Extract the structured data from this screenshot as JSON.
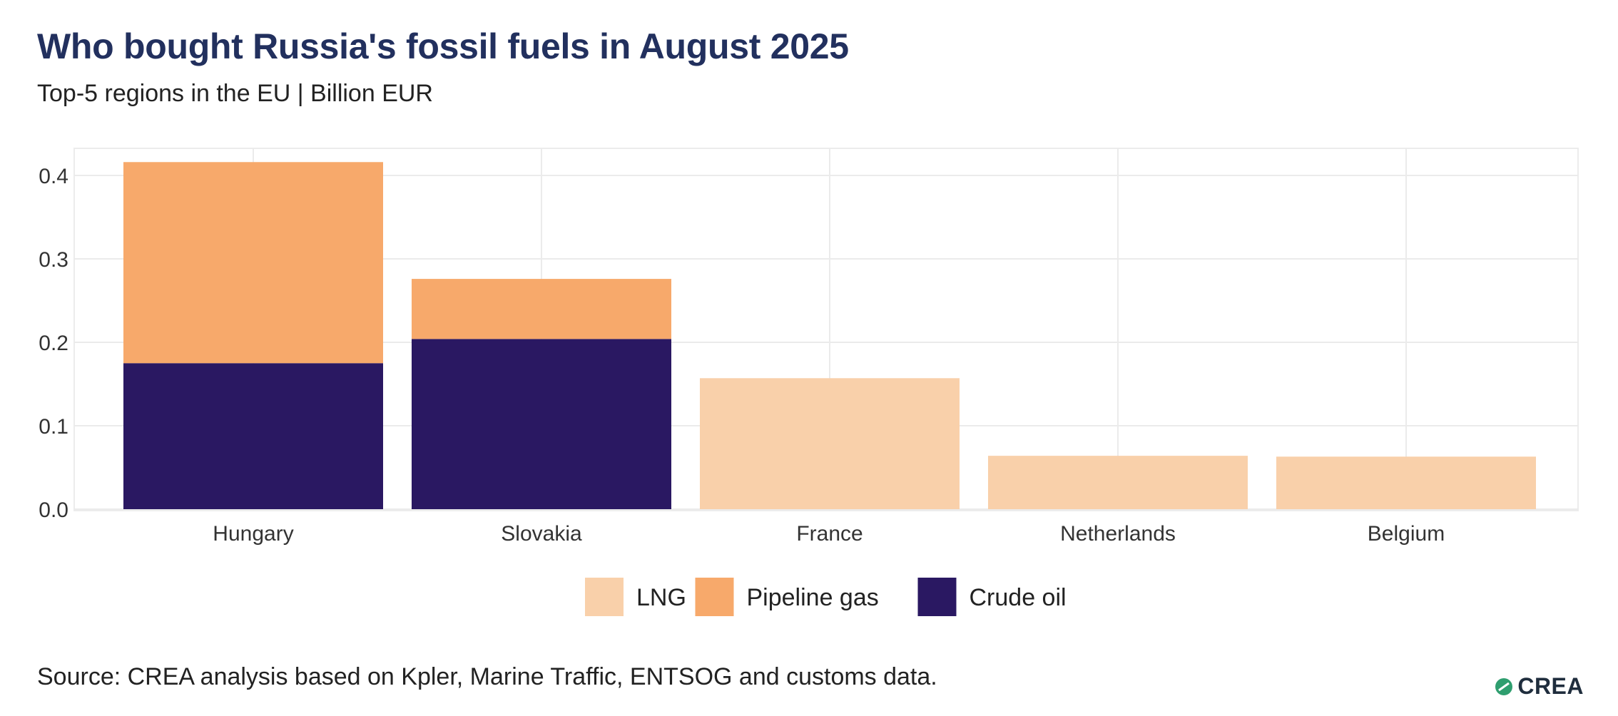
{
  "title": "Who bought Russia's fossil fuels in August 2025",
  "subtitle": "Top-5 regions in the EU | Billion EUR",
  "source": "Source: CREA analysis based on Kpler, Marine Traffic, ENTSOG and customs data.",
  "logo": {
    "text": "CREA"
  },
  "chart_data": {
    "type": "bar",
    "stacked": true,
    "categories": [
      "Hungary",
      "Slovakia",
      "France",
      "Netherlands",
      "Belgium"
    ],
    "series": [
      {
        "name": "Crude oil",
        "color": "#2a1862",
        "values": [
          0.175,
          0.204,
          0,
          0,
          0
        ]
      },
      {
        "name": "Pipeline gas",
        "color": "#f7a96b",
        "values": [
          0.241,
          0.072,
          0,
          0,
          0
        ]
      },
      {
        "name": "LNG",
        "color": "#f9d0aa",
        "values": [
          0,
          0,
          0.157,
          0.064,
          0.063
        ]
      }
    ],
    "legend_order": [
      "LNG",
      "Pipeline gas",
      "Crude oil"
    ],
    "legend_position": "bottom",
    "ylim": [
      0,
      0.43
    ],
    "yticks": [
      "0.0",
      "0.1",
      "0.2",
      "0.3",
      "0.4"
    ],
    "grid": true
  }
}
